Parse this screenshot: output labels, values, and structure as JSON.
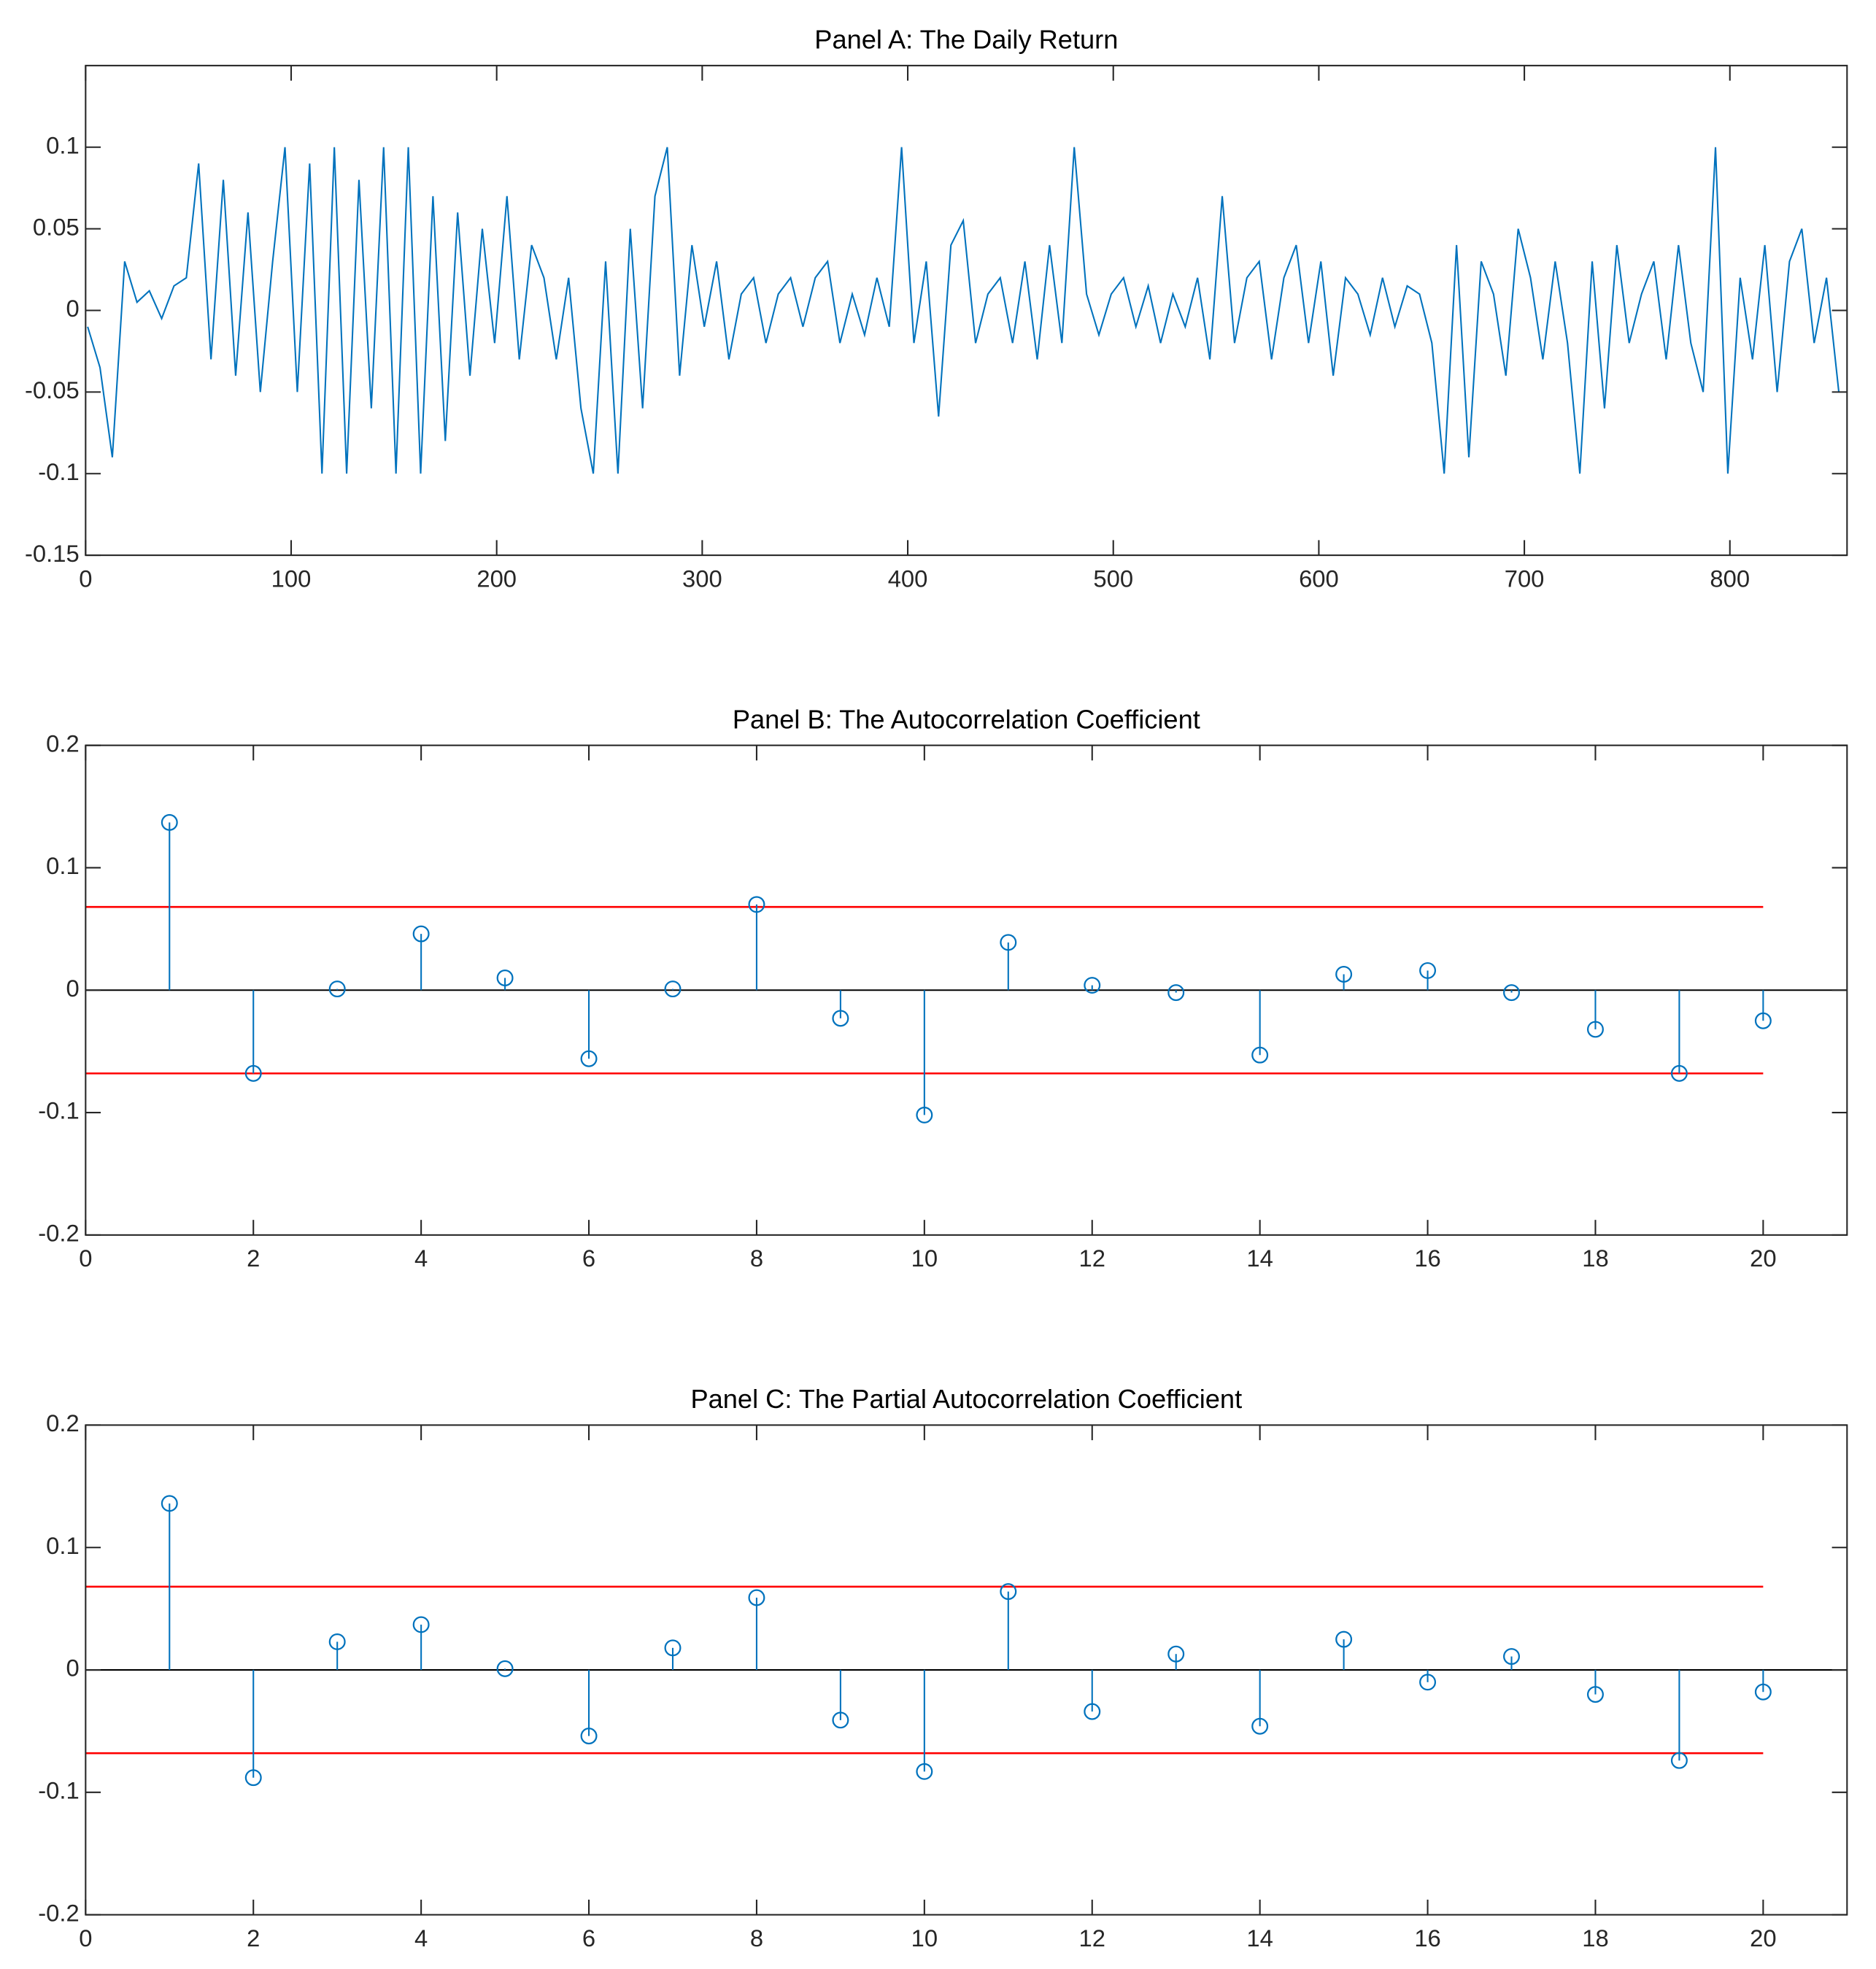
{
  "chart_data": [
    {
      "type": "line",
      "title": "Panel A: The Daily Return",
      "color": "#0072bd",
      "x": [
        1,
        7,
        13,
        19,
        25,
        31,
        37,
        43,
        49,
        55,
        61,
        67,
        73,
        79,
        85,
        91,
        97,
        103,
        109,
        115,
        121,
        127,
        133,
        139,
        145,
        151,
        157,
        163,
        169,
        175,
        181,
        187,
        193,
        199,
        205,
        211,
        217,
        223,
        229,
        235,
        241,
        247,
        253,
        259,
        265,
        271,
        277,
        283,
        289,
        295,
        301,
        307,
        313,
        319,
        325,
        331,
        337,
        343,
        349,
        355,
        361,
        367,
        373,
        379,
        385,
        391,
        397,
        403,
        409,
        415,
        421,
        427,
        433,
        439,
        445,
        451,
        457,
        463,
        469,
        475,
        481,
        487,
        493,
        499,
        505,
        511,
        517,
        523,
        529,
        535,
        541,
        547,
        553,
        559,
        565,
        571,
        577,
        583,
        589,
        595,
        601,
        607,
        613,
        619,
        625,
        631,
        637,
        643,
        649,
        655,
        661,
        667,
        673,
        679,
        685,
        691,
        697,
        703,
        709,
        715,
        721,
        727,
        733,
        739,
        745,
        751,
        757,
        763,
        769,
        775,
        781,
        787,
        793,
        799,
        805,
        811,
        817,
        823,
        829,
        835,
        841,
        847,
        853
      ],
      "values": [
        -0.01,
        -0.035,
        -0.09,
        0.03,
        0.005,
        0.012,
        -0.005,
        0.015,
        0.02,
        0.09,
        -0.03,
        0.08,
        -0.04,
        0.06,
        -0.05,
        0.03,
        0.1,
        -0.05,
        0.09,
        -0.1,
        0.1,
        -0.1,
        0.08,
        -0.06,
        0.1,
        -0.1,
        0.1,
        -0.1,
        0.07,
        -0.08,
        0.06,
        -0.04,
        0.05,
        -0.02,
        0.07,
        -0.03,
        0.04,
        0.02,
        -0.03,
        0.02,
        -0.06,
        -0.1,
        0.03,
        -0.1,
        0.05,
        -0.06,
        0.07,
        0.1,
        -0.04,
        0.04,
        -0.01,
        0.03,
        -0.03,
        0.01,
        0.02,
        -0.02,
        0.01,
        0.02,
        -0.01,
        0.02,
        0.03,
        -0.02,
        0.01,
        -0.015,
        0.02,
        -0.01,
        0.1,
        -0.02,
        0.03,
        -0.065,
        0.04,
        0.055,
        -0.02,
        0.01,
        0.02,
        -0.02,
        0.03,
        -0.03,
        0.04,
        -0.02,
        0.1,
        0.01,
        -0.015,
        0.01,
        0.02,
        -0.01,
        0.015,
        -0.02,
        0.01,
        -0.01,
        0.02,
        -0.03,
        0.07,
        -0.02,
        0.02,
        0.03,
        -0.03,
        0.02,
        0.04,
        -0.02,
        0.03,
        -0.04,
        0.02,
        0.01,
        -0.015,
        0.02,
        -0.01,
        0.015,
        0.01,
        -0.02,
        -0.1,
        0.04,
        -0.09,
        0.03,
        0.01,
        -0.04,
        0.05,
        0.02,
        -0.03,
        0.03,
        -0.02,
        -0.1,
        0.03,
        -0.06,
        0.04,
        -0.02,
        0.01,
        0.03,
        -0.03,
        0.04,
        -0.02,
        -0.05,
        0.1,
        -0.1,
        0.02,
        -0.03,
        0.04,
        -0.05,
        0.03,
        0.05,
        -0.02,
        0.02,
        -0.05
      ],
      "xlim": [
        0,
        857
      ],
      "xticks": [
        0,
        100,
        200,
        300,
        400,
        500,
        600,
        700,
        800
      ],
      "ylim": [
        -0.15,
        0.15
      ],
      "yticks": [
        -0.15,
        -0.1,
        -0.05,
        0,
        0.05,
        0.1
      ]
    },
    {
      "type": "stem",
      "title": "Panel B: The Autocorrelation Coefficient",
      "color": "#0072bd",
      "x": [
        1,
        2,
        3,
        4,
        5,
        6,
        7,
        8,
        9,
        10,
        11,
        12,
        13,
        14,
        15,
        16,
        17,
        18,
        19,
        20
      ],
      "values": [
        0.137,
        -0.068,
        0.001,
        0.046,
        0.01,
        -0.056,
        0.001,
        0.07,
        -0.023,
        -0.102,
        0.039,
        0.004,
        -0.002,
        -0.053,
        0.013,
        0.016,
        -0.002,
        -0.032,
        -0.068,
        -0.025
      ],
      "bounds": [
        -0.068,
        0.068
      ],
      "bound_color": "#ff0000",
      "xlim": [
        0,
        21
      ],
      "xticks": [
        0,
        2,
        4,
        6,
        8,
        10,
        12,
        14,
        16,
        18,
        20
      ],
      "ylim": [
        -0.2,
        0.2
      ],
      "yticks": [
        -0.2,
        -0.1,
        0,
        0.1,
        0.2
      ]
    },
    {
      "type": "stem",
      "title": "Panel C: The Partial Autocorrelation Coefficient",
      "color": "#0072bd",
      "x": [
        1,
        2,
        3,
        4,
        5,
        6,
        7,
        8,
        9,
        10,
        11,
        12,
        13,
        14,
        15,
        16,
        17,
        18,
        19,
        20
      ],
      "values": [
        0.136,
        -0.088,
        0.023,
        0.037,
        0.001,
        -0.054,
        0.018,
        0.059,
        -0.041,
        -0.083,
        0.064,
        -0.034,
        0.013,
        -0.046,
        0.025,
        -0.01,
        0.011,
        -0.02,
        -0.074,
        -0.018
      ],
      "bounds": [
        -0.068,
        0.068
      ],
      "bound_color": "#ff0000",
      "xlim": [
        0,
        21
      ],
      "xticks": [
        0,
        2,
        4,
        6,
        8,
        10,
        12,
        14,
        16,
        18,
        20
      ],
      "ylim": [
        -0.2,
        0.2
      ],
      "yticks": [
        -0.2,
        -0.1,
        0,
        0.1,
        0.2
      ]
    }
  ]
}
